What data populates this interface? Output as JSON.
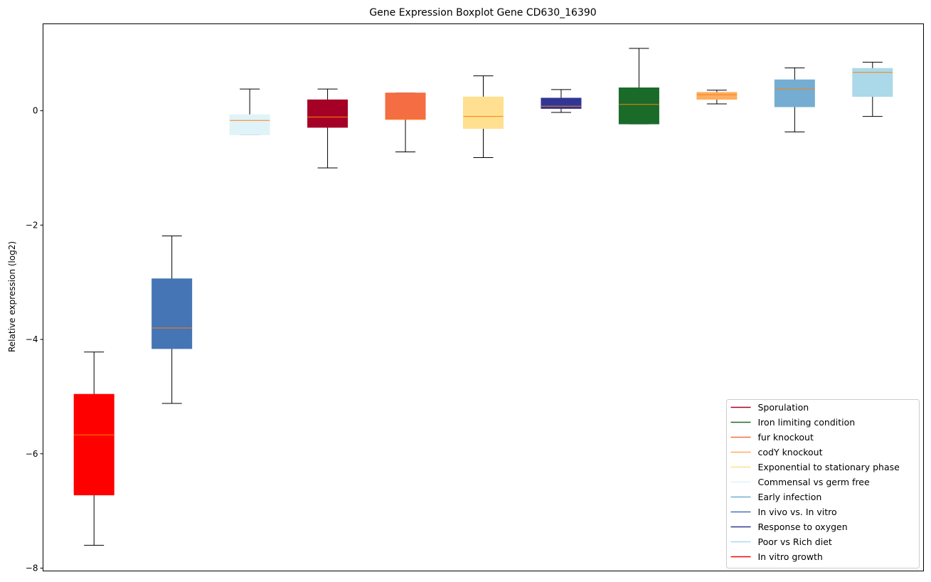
{
  "chart_data": {
    "type": "boxplot",
    "title": "Gene Expression Boxplot Gene CD630_16390",
    "xlabel": "",
    "ylabel": "Relative expression (log2)",
    "ylim": [
      -8.05,
      1.52
    ],
    "yticks": [
      -8,
      -6,
      -4,
      -2,
      0
    ],
    "ytick_labels": [
      "−8",
      "−6",
      "−4",
      "−2",
      "0"
    ],
    "grid": false,
    "legend_position": "lower-right",
    "boxes": [
      {
        "group": "In vitro growth",
        "color": "#ff0000",
        "whisker_low": -7.6,
        "q1": -6.72,
        "median": -5.67,
        "q3": -4.96,
        "whisker_high": -4.22
      },
      {
        "group": "In vivo vs. In vitro",
        "color": "#4575b4",
        "whisker_low": -5.12,
        "q1": -4.16,
        "median": -3.8,
        "q3": -2.94,
        "whisker_high": -2.19
      },
      {
        "group": "Commensal vs germ free",
        "color": "#e0f3f8",
        "whisker_low": -0.42,
        "q1": -0.42,
        "median": -0.17,
        "q3": -0.07,
        "whisker_high": 0.38
      },
      {
        "group": "Sporulation",
        "color": "#a50026",
        "whisker_low": -1.0,
        "q1": -0.29,
        "median": -0.11,
        "q3": 0.19,
        "whisker_high": 0.38
      },
      {
        "group": "fur knockout",
        "color": "#f46d43",
        "whisker_low": -0.72,
        "q1": -0.15,
        "median": -0.15,
        "q3": 0.31,
        "whisker_high": 0.31
      },
      {
        "group": "Exponential to stationary phase",
        "color": "#fee090",
        "whisker_low": -0.82,
        "q1": -0.31,
        "median": -0.1,
        "q3": 0.24,
        "whisker_high": 0.61
      },
      {
        "group": "Response to oxygen",
        "color": "#313695",
        "whisker_low": -0.03,
        "q1": 0.04,
        "median": 0.08,
        "q3": 0.22,
        "whisker_high": 0.37
      },
      {
        "group": "Iron limiting condition",
        "color": "#1a6b2a",
        "whisker_low": -0.23,
        "q1": -0.23,
        "median": 0.11,
        "q3": 0.4,
        "whisker_high": 1.09
      },
      {
        "group": "codY knockout",
        "color": "#fdae61",
        "whisker_low": 0.12,
        "q1": 0.2,
        "median": 0.28,
        "q3": 0.32,
        "whisker_high": 0.36
      },
      {
        "group": "Early infection",
        "color": "#74add1",
        "whisker_low": -0.37,
        "q1": 0.07,
        "median": 0.38,
        "q3": 0.54,
        "whisker_high": 0.75
      },
      {
        "group": "Poor vs Rich diet",
        "color": "#abd9e9",
        "whisker_low": -0.1,
        "q1": 0.25,
        "median": 0.67,
        "q3": 0.74,
        "whisker_high": 0.85
      }
    ],
    "legend": [
      {
        "label": "Sporulation",
        "color": "#a50026"
      },
      {
        "label": "Iron limiting condition",
        "color": "#1a6b2a"
      },
      {
        "label": "fur knockout",
        "color": "#f46d43"
      },
      {
        "label": "codY knockout",
        "color": "#fdae61"
      },
      {
        "label": "Exponential to stationary phase",
        "color": "#fee090"
      },
      {
        "label": "Commensal vs germ free",
        "color": "#e0f3f8"
      },
      {
        "label": "Early infection",
        "color": "#74add1"
      },
      {
        "label": "In vivo vs. In vitro",
        "color": "#4575b4"
      },
      {
        "label": "Response to oxygen",
        "color": "#313695"
      },
      {
        "label": "Poor vs Rich diet",
        "color": "#abd9e9"
      },
      {
        "label": "In vitro growth",
        "color": "#ff0000"
      }
    ],
    "median_color": "#ff7f0e"
  }
}
